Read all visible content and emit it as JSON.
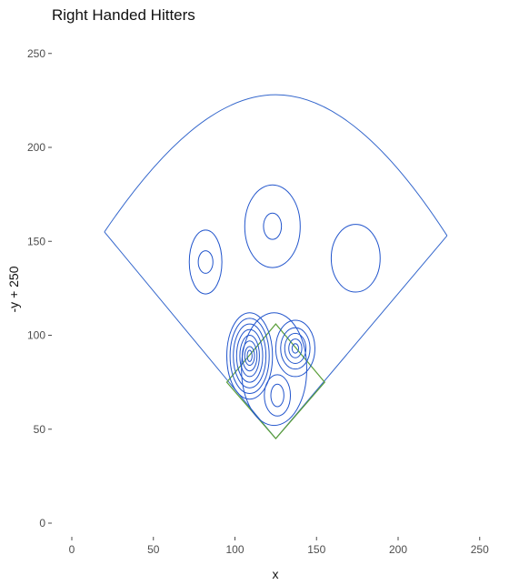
{
  "chart_data": {
    "type": "contour",
    "title": "Right Handed Hitters",
    "xlabel": "x",
    "ylabel": "-y + 250",
    "xlim": [
      -10,
      260
    ],
    "ylim": [
      -15,
      262
    ],
    "x_ticks": [
      0,
      50,
      100,
      150,
      200,
      250
    ],
    "y_ticks": [
      0,
      50,
      100,
      150,
      200,
      250
    ],
    "grid": false,
    "colors": {
      "field_outline": "#3366cc",
      "contour": "#2255cc",
      "infield": "#5a9e3a"
    },
    "field_outline": {
      "home": [
        125,
        45
      ],
      "left_foul_end": [
        20,
        155
      ],
      "right_foul_end": [
        230,
        153
      ],
      "fence_apex": [
        125,
        228
      ]
    },
    "infield": {
      "home": [
        125,
        45
      ],
      "first": [
        155,
        75
      ],
      "second": [
        125,
        106
      ],
      "third": [
        95,
        75
      ]
    },
    "contours": [
      {
        "cx": 82,
        "cy": 139,
        "rx": [
          10,
          4.5
        ],
        "ry": [
          17,
          6
        ]
      },
      {
        "cx": 123,
        "cy": 158,
        "rx": [
          17,
          5.5
        ],
        "ry": [
          22,
          7
        ]
      },
      {
        "cx": 174,
        "cy": 141,
        "rx": [
          15
        ],
        "ry": [
          18
        ]
      },
      {
        "cx": 109,
        "cy": 89,
        "rx": [
          14,
          12,
          10,
          8,
          6,
          4.5,
          3,
          1.5
        ],
        "ry": [
          23,
          20,
          17,
          14,
          11,
          8,
          5,
          3
        ]
      },
      {
        "cx": 137,
        "cy": 93,
        "rx": [
          12,
          9,
          6.5,
          4,
          2
        ],
        "ry": [
          15,
          11,
          8,
          5,
          2.5
        ]
      },
      {
        "cx": 126,
        "cy": 68,
        "rx": [
          8,
          4
        ],
        "ry": [
          11,
          6
        ]
      },
      {
        "cx": 124,
        "cy": 82,
        "rx": [
          20
        ],
        "ry": [
          30
        ]
      }
    ]
  }
}
